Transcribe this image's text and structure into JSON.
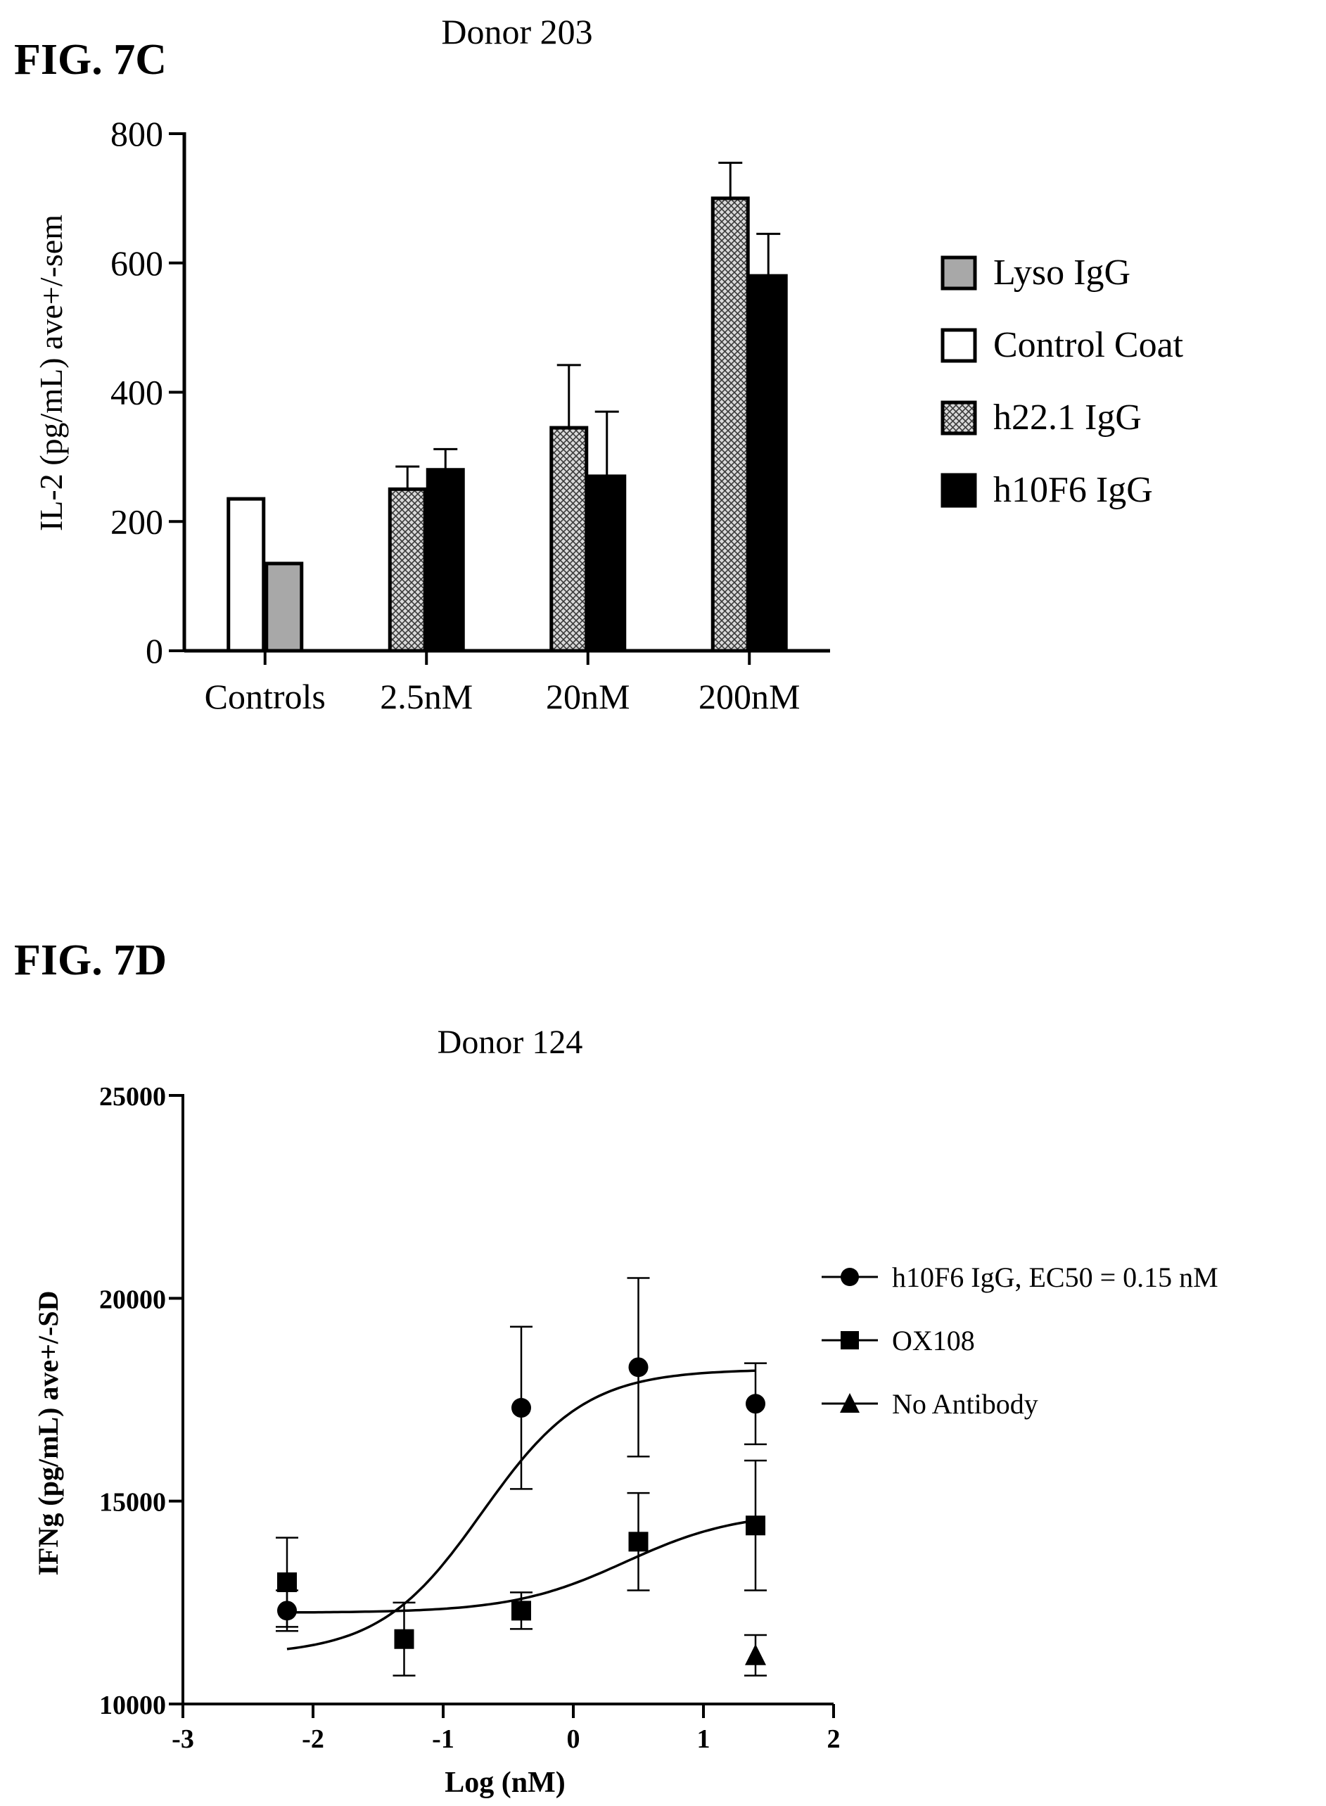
{
  "figure_c": {
    "label": "FIG. 7C"
  },
  "figure_d": {
    "label": "FIG. 7D"
  },
  "chart_data": [
    {
      "type": "bar",
      "title": "Donor 203",
      "ylabel": "IL-2 (pg/mL) ave+/-sem",
      "xlabel": "",
      "ylim": [
        0,
        800
      ],
      "yticks": [
        0,
        200,
        400,
        600,
        800
      ],
      "categories": [
        "Controls",
        "2.5nM",
        "20nM",
        "200nM"
      ],
      "legend_position": "right",
      "legend": [
        {
          "name": "Lyso IgG",
          "pattern": "gray"
        },
        {
          "name": "Control Coat",
          "pattern": "white"
        },
        {
          "name": "h22.1 IgG",
          "pattern": "crosshatch"
        },
        {
          "name": "h10F6 IgG",
          "pattern": "black"
        }
      ],
      "bars": [
        {
          "category": "Controls",
          "series": "Control Coat",
          "value": 235,
          "error": 0
        },
        {
          "category": "Controls",
          "series": "Lyso IgG",
          "value": 135,
          "error": 0
        },
        {
          "category": "2.5nM",
          "series": "h22.1 IgG",
          "value": 250,
          "error": 35
        },
        {
          "category": "2.5nM",
          "series": "h10F6 IgG",
          "value": 280,
          "error": 32
        },
        {
          "category": "20nM",
          "series": "h22.1 IgG",
          "value": 345,
          "error": 97
        },
        {
          "category": "20nM",
          "series": "h10F6 IgG",
          "value": 270,
          "error": 100
        },
        {
          "category": "200nM",
          "series": "h22.1 IgG",
          "value": 700,
          "error": 55
        },
        {
          "category": "200nM",
          "series": "h10F6 IgG",
          "value": 580,
          "error": 65
        }
      ]
    },
    {
      "type": "scatter",
      "title": "Donor 124",
      "xlabel": "Log (nM)",
      "ylabel": "IFNg (pg/mL) ave+/-SD",
      "xlim": [
        -3,
        2
      ],
      "ylim": [
        10000,
        25000
      ],
      "xticks": [
        -3,
        -2,
        -1,
        0,
        1,
        2
      ],
      "yticks": [
        10000,
        15000,
        20000,
        25000
      ],
      "legend_position": "right",
      "series": [
        {
          "name": "h10F6 IgG, EC50 = 0.15 nM",
          "marker": "circle",
          "x": [
            -2.2,
            -0.4,
            0.5,
            1.4
          ],
          "y": [
            12300,
            17300,
            18300,
            17400
          ],
          "error": [
            500,
            2000,
            2200,
            1000
          ],
          "fit": {
            "bottom": 11200,
            "top": 18250,
            "logEC50": -0.7,
            "hill": 1.1
          }
        },
        {
          "name": "OX108",
          "marker": "square",
          "x": [
            -2.2,
            -1.3,
            -0.4,
            0.5,
            1.4
          ],
          "y": [
            13000,
            11600,
            12300,
            14000,
            14400
          ],
          "error": [
            1100,
            900,
            450,
            1200,
            1600
          ],
          "fit": {
            "bottom": 12250,
            "top": 14750,
            "logEC50": 0.4,
            "hill": 1.0
          }
        },
        {
          "name": "No Antibody",
          "marker": "triangle",
          "x": [
            1.4
          ],
          "y": [
            11200
          ],
          "error": [
            500
          ]
        }
      ]
    }
  ]
}
